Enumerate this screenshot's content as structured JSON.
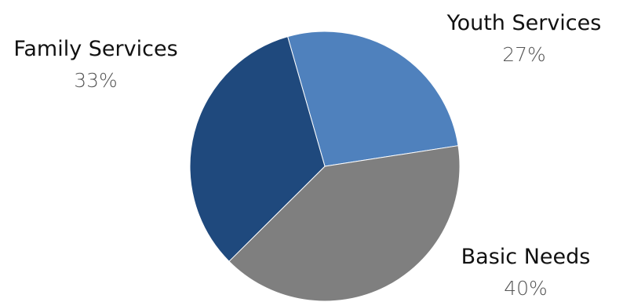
{
  "chart_data": {
    "type": "pie",
    "categories": [
      "Youth Services",
      "Basic Needs",
      "Family Services"
    ],
    "values": [
      27,
      40,
      33
    ],
    "value_labels": [
      "27%",
      "40%",
      "33%"
    ],
    "colors": [
      "#4f81bd",
      "#7f7f7f",
      "#1f497d"
    ],
    "title": "",
    "legend": "none",
    "start_angle_deg": -16
  }
}
